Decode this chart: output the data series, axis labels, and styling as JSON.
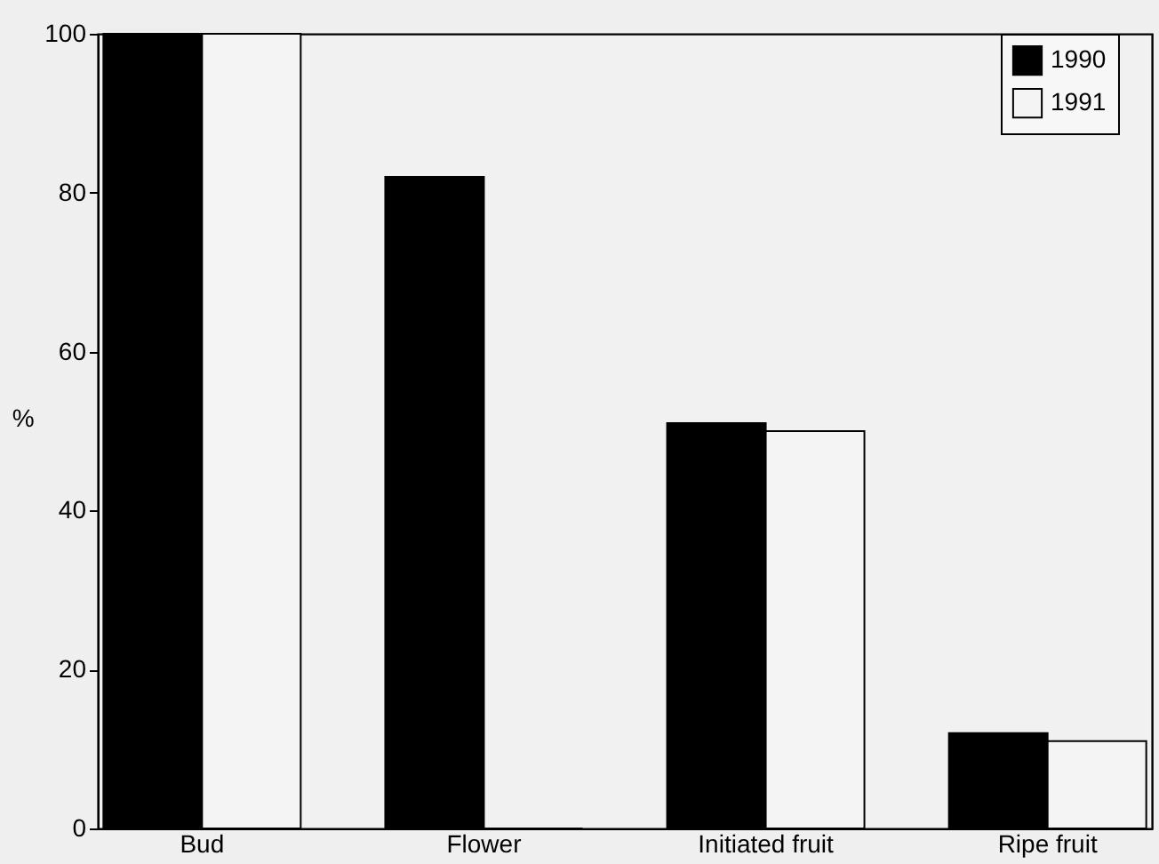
{
  "chart_data": {
    "type": "bar",
    "ylabel": "%",
    "categories": [
      "Bud",
      "Flower",
      "Initiated fruit",
      "Ripe fruit"
    ],
    "series": [
      {
        "name": "1990",
        "color": "#000000",
        "values": [
          100,
          82,
          51,
          12
        ]
      },
      {
        "name": "1991",
        "color": "#f4f4f4",
        "values": [
          100,
          0,
          50,
          11
        ]
      }
    ],
    "ylim": [
      0,
      100
    ],
    "yticks": [
      0,
      20,
      40,
      60,
      80,
      100
    ],
    "grid": false,
    "legend": "right"
  }
}
